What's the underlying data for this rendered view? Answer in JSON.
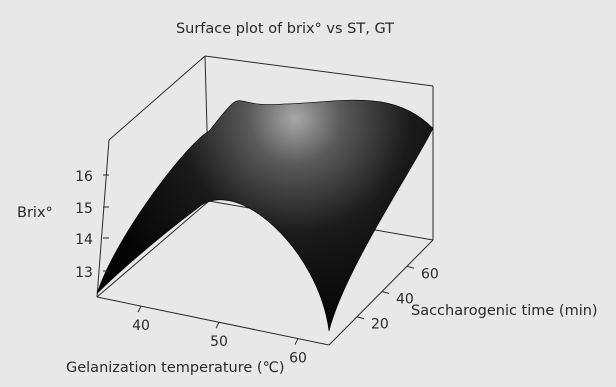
{
  "chart_data": {
    "type": "surface",
    "title": "Surface plot of brix° vs ST, GT",
    "zlabel": "Brix°",
    "xlabel": "Gelanization temperature (℃)",
    "ylabel": "Saccharogenic time (min)",
    "x_ticks": [
      "40",
      "50",
      "60"
    ],
    "y_ticks": [
      "20",
      "40",
      "60"
    ],
    "z_ticks": [
      "13",
      "14",
      "15",
      "16"
    ],
    "xlim": [
      35,
      65
    ],
    "ylim": [
      10,
      70
    ],
    "zlim": [
      12.5,
      17
    ],
    "surface": {
      "peak": {
        "x": 50,
        "y": 50,
        "z": 16.8
      },
      "corners": [
        {
          "x": 35,
          "y": 10,
          "z": 12.6
        },
        {
          "x": 65,
          "y": 10,
          "z": 12.9
        },
        {
          "x": 65,
          "y": 70,
          "z": 15.7
        },
        {
          "x": 35,
          "y": 70,
          "z": 14.5
        }
      ]
    },
    "grid": false,
    "colors": {
      "background": "#e8e8e8",
      "surface_dark": "#050505",
      "surface_highlight": "#a8a8a8",
      "axis": "#2a2a2a"
    }
  }
}
